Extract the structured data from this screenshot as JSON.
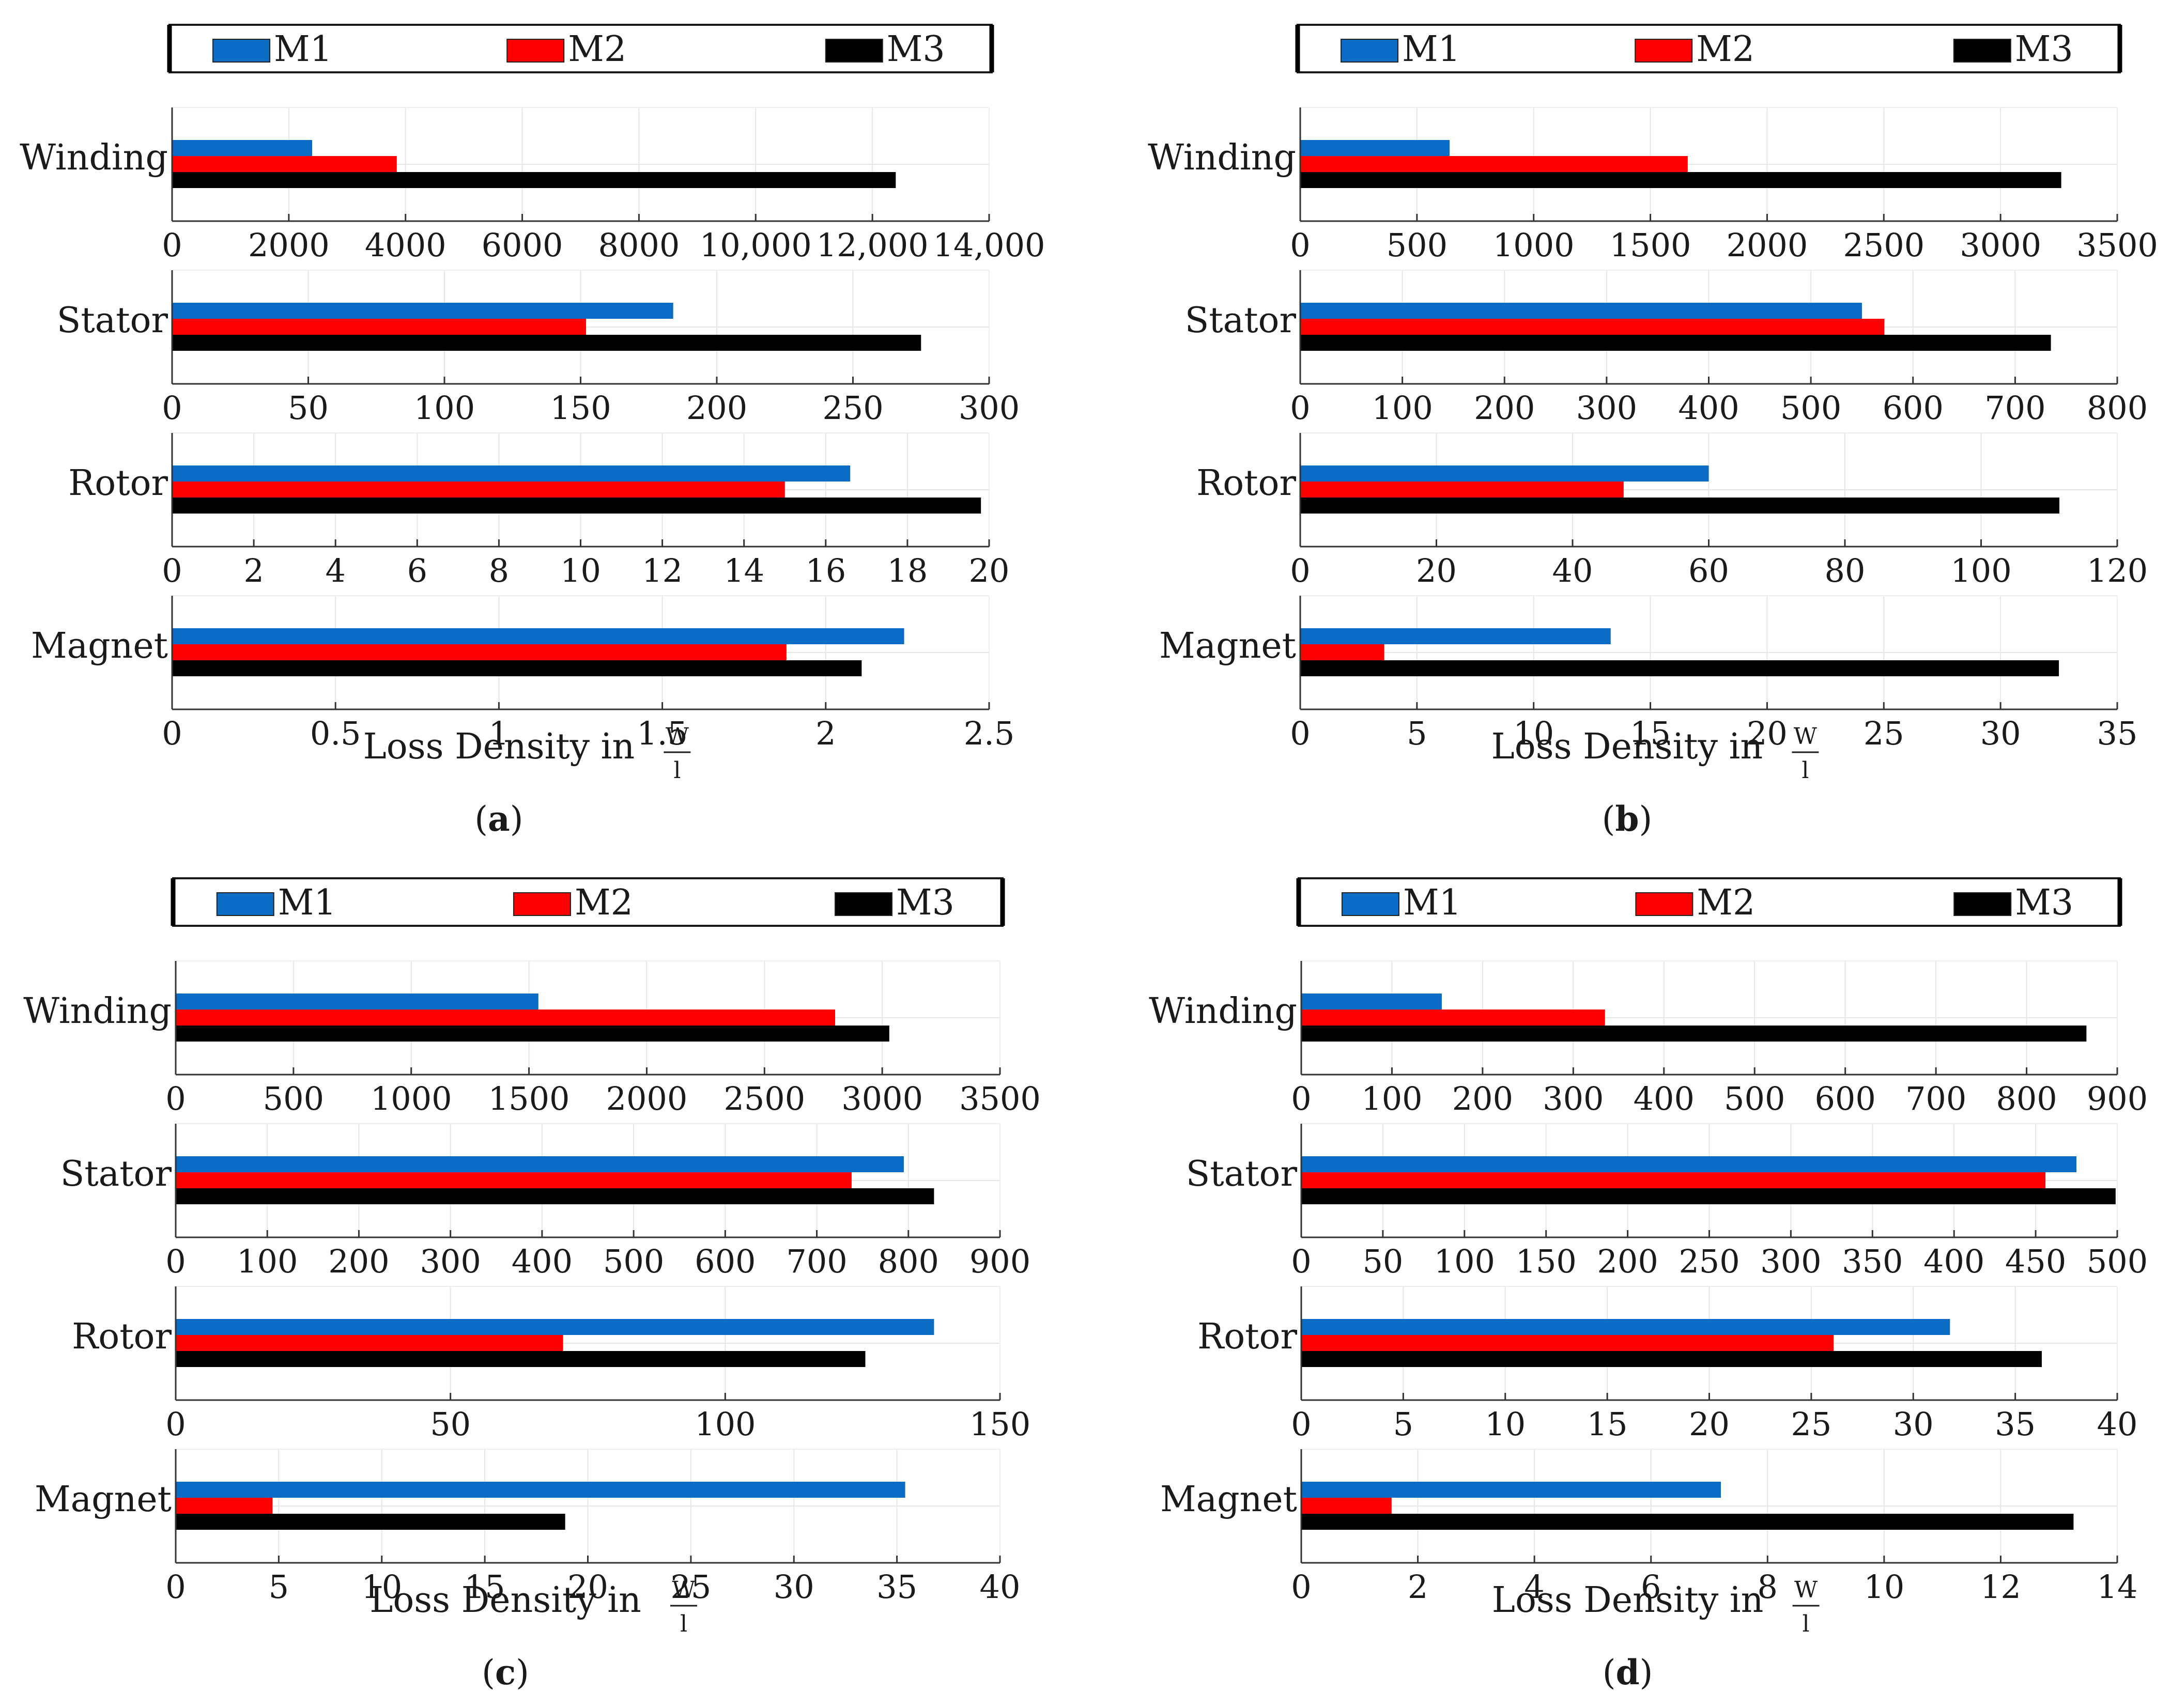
{
  "figure": {
    "series": [
      {
        "name": "M1",
        "color": "#0a6cc4"
      },
      {
        "name": "M2",
        "color": "#ff0000"
      },
      {
        "name": "M3",
        "color": "#000000"
      }
    ],
    "axis_label": "Loss Density in",
    "unit_numerator": "W",
    "unit_denominator": "l"
  },
  "chart_data": [
    {
      "type": "bar",
      "orientation": "horizontal",
      "label_open": "(",
      "label": "a",
      "label_close": ")",
      "legend": [
        "M1",
        "M2",
        "M3"
      ],
      "xlabel": "Loss Density in W/l",
      "subplots": [
        {
          "category": "Winding",
          "xlim": [
            0,
            14000
          ],
          "ticks": [
            "0",
            "2000",
            "4000",
            "6000",
            "8000",
            "10,000",
            "12,000",
            "14,000"
          ],
          "tick_values": [
            0,
            2000,
            4000,
            6000,
            8000,
            10000,
            12000,
            14000
          ],
          "values": [
            2400,
            3850,
            12400
          ]
        },
        {
          "category": "Stator",
          "xlim": [
            0,
            300
          ],
          "ticks": [
            "0",
            "50",
            "100",
            "150",
            "200",
            "250",
            "300"
          ],
          "tick_values": [
            0,
            50,
            100,
            150,
            200,
            250,
            300
          ],
          "values": [
            184,
            152,
            275
          ]
        },
        {
          "category": "Rotor",
          "xlim": [
            0,
            20
          ],
          "ticks": [
            "0",
            "2",
            "4",
            "6",
            "8",
            "10",
            "12",
            "14",
            "16",
            "18",
            "20"
          ],
          "tick_values": [
            0,
            2,
            4,
            6,
            8,
            10,
            12,
            14,
            16,
            18,
            20
          ],
          "values": [
            16.6,
            15.0,
            19.8
          ]
        },
        {
          "category": "Magnet",
          "xlim": [
            0,
            2.5
          ],
          "ticks": [
            "0",
            "0.5",
            "1",
            "1.5",
            "2",
            "2.5"
          ],
          "tick_values": [
            0,
            0.5,
            1,
            1.5,
            2,
            2.5
          ],
          "values": [
            2.24,
            1.88,
            2.11
          ]
        }
      ]
    },
    {
      "type": "bar",
      "orientation": "horizontal",
      "label_open": "(",
      "label": "b",
      "label_close": ")",
      "legend": [
        "M1",
        "M2",
        "M3"
      ],
      "xlabel": "Loss Density in W/l",
      "subplots": [
        {
          "category": "Winding",
          "xlim": [
            0,
            3500
          ],
          "ticks": [
            "0",
            "500",
            "1000",
            "1500",
            "2000",
            "2500",
            "3000",
            "3500"
          ],
          "tick_values": [
            0,
            500,
            1000,
            1500,
            2000,
            2500,
            3000,
            3500
          ],
          "values": [
            640,
            1660,
            3260
          ]
        },
        {
          "category": "Stator",
          "xlim": [
            0,
            800
          ],
          "ticks": [
            "0",
            "100",
            "200",
            "300",
            "400",
            "500",
            "600",
            "700",
            "800"
          ],
          "tick_values": [
            0,
            100,
            200,
            300,
            400,
            500,
            600,
            700,
            800
          ],
          "values": [
            550,
            572,
            735
          ]
        },
        {
          "category": "Rotor",
          "xlim": [
            0,
            120
          ],
          "ticks": [
            "0",
            "20",
            "40",
            "60",
            "80",
            "100",
            "120"
          ],
          "tick_values": [
            0,
            20,
            40,
            60,
            80,
            100,
            120
          ],
          "values": [
            60,
            47.5,
            111.5
          ]
        },
        {
          "category": "Magnet",
          "xlim": [
            0,
            35
          ],
          "ticks": [
            "0",
            "5",
            "10",
            "15",
            "20",
            "25",
            "30",
            "35"
          ],
          "tick_values": [
            0,
            5,
            10,
            15,
            20,
            25,
            30,
            35
          ],
          "values": [
            13.3,
            3.6,
            32.5
          ]
        }
      ]
    },
    {
      "type": "bar",
      "orientation": "horizontal",
      "label_open": "(",
      "label": "c",
      "label_close": ")",
      "legend": [
        "M1",
        "M2",
        "M3"
      ],
      "xlabel": "Loss Density in W/l",
      "subplots": [
        {
          "category": "Winding",
          "xlim": [
            0,
            3500
          ],
          "ticks": [
            "0",
            "500",
            "1000",
            "1500",
            "2000",
            "2500",
            "3000",
            "3500"
          ],
          "tick_values": [
            0,
            500,
            1000,
            1500,
            2000,
            2500,
            3000,
            3500
          ],
          "values": [
            1540,
            2800,
            3030
          ]
        },
        {
          "category": "Stator",
          "xlim": [
            0,
            900
          ],
          "ticks": [
            "0",
            "100",
            "200",
            "300",
            "400",
            "500",
            "600",
            "700",
            "800",
            "900"
          ],
          "tick_values": [
            0,
            100,
            200,
            300,
            400,
            500,
            600,
            700,
            800,
            900
          ],
          "values": [
            795,
            738,
            828
          ]
        },
        {
          "category": "Rotor",
          "xlim": [
            0,
            150
          ],
          "ticks": [
            "0",
            "50",
            "100",
            "150"
          ],
          "tick_values": [
            0,
            50,
            100,
            150
          ],
          "values": [
            138,
            70.5,
            125.5
          ]
        },
        {
          "category": "Magnet",
          "xlim": [
            0,
            40
          ],
          "ticks": [
            "0",
            "5",
            "10",
            "15",
            "20",
            "25",
            "30",
            "35",
            "40"
          ],
          "tick_values": [
            0,
            5,
            10,
            15,
            20,
            25,
            30,
            35,
            40
          ],
          "values": [
            35.4,
            4.7,
            18.9
          ]
        }
      ]
    },
    {
      "type": "bar",
      "orientation": "horizontal",
      "label_open": "(",
      "label": "d",
      "label_close": ")",
      "legend": [
        "M1",
        "M2",
        "M3"
      ],
      "xlabel": "Loss Density in W/l",
      "subplots": [
        {
          "category": "Winding",
          "xlim": [
            0,
            900
          ],
          "ticks": [
            "0",
            "100",
            "200",
            "300",
            "400",
            "500",
            "600",
            "700",
            "800",
            "900"
          ],
          "tick_values": [
            0,
            100,
            200,
            300,
            400,
            500,
            600,
            700,
            800,
            900
          ],
          "values": [
            155,
            335,
            866
          ]
        },
        {
          "category": "Stator",
          "xlim": [
            0,
            500
          ],
          "ticks": [
            "0",
            "50",
            "100",
            "150",
            "200",
            "250",
            "300",
            "350",
            "400",
            "450",
            "500"
          ],
          "tick_values": [
            0,
            50,
            100,
            150,
            200,
            250,
            300,
            350,
            400,
            450,
            500
          ],
          "values": [
            475,
            456,
            499
          ]
        },
        {
          "category": "Rotor",
          "xlim": [
            0,
            40
          ],
          "ticks": [
            "0",
            "5",
            "10",
            "15",
            "20",
            "25",
            "30",
            "35",
            "40"
          ],
          "tick_values": [
            0,
            5,
            10,
            15,
            20,
            25,
            30,
            35,
            40
          ],
          "values": [
            31.8,
            26.1,
            36.3
          ]
        },
        {
          "category": "Magnet",
          "xlim": [
            0,
            14
          ],
          "ticks": [
            "0",
            "2",
            "4",
            "6",
            "8",
            "10",
            "12",
            "14"
          ],
          "tick_values": [
            0,
            2,
            4,
            6,
            8,
            10,
            12,
            14
          ],
          "values": [
            7.2,
            1.55,
            13.25
          ]
        }
      ]
    }
  ]
}
